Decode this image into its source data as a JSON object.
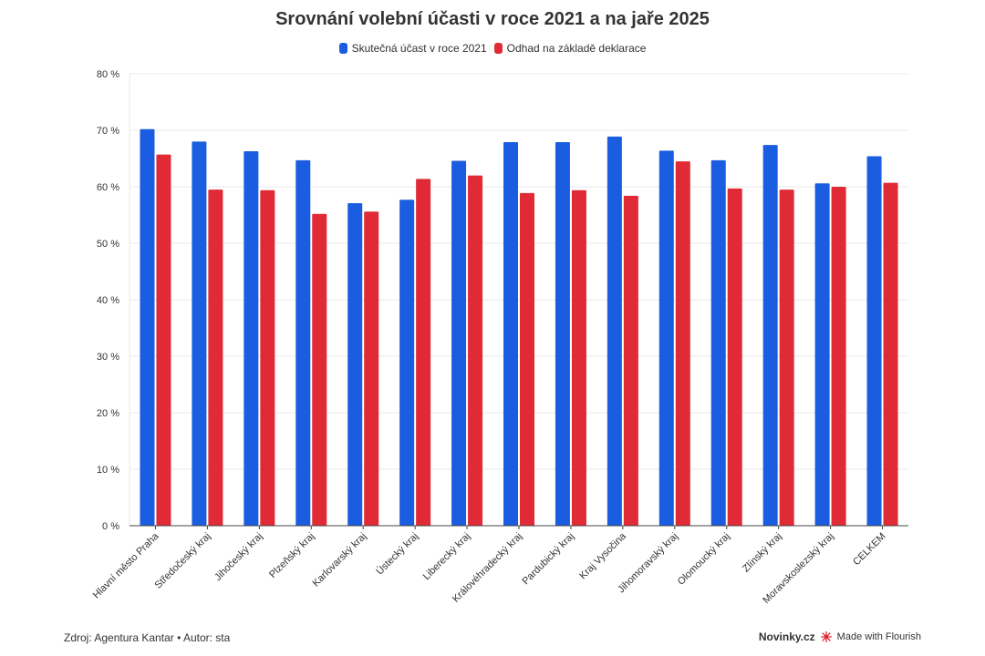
{
  "chart_data": {
    "type": "bar",
    "title": "Srovnání volební účasti v roce 2021 a na jaře 2025",
    "categories": [
      "Hlavní město Praha",
      "Středočeský kraj",
      "Jihočeský kraj",
      "Plzeňský kraj",
      "Karlovarský kraj",
      "Ústecký kraj",
      "Liberecký kraj",
      "Královéhradecký kraj",
      "Pardubický kraj",
      "Kraj Vysočina",
      "Jihomoravský kraj",
      "Olomoucký kraj",
      "Zlínský kraj",
      "Moravskoslezský kraj",
      "CELKEM"
    ],
    "series": [
      {
        "name": "Skutečná účast v roce 2021",
        "color": "#1a5de0",
        "values": [
          70.2,
          68.0,
          66.3,
          64.7,
          57.1,
          57.7,
          64.6,
          67.9,
          67.9,
          68.9,
          66.4,
          64.7,
          67.4,
          60.6,
          65.4
        ]
      },
      {
        "name": "Odhad na základě deklarace",
        "color": "#e02a35",
        "values": [
          65.7,
          59.5,
          59.4,
          55.2,
          55.6,
          61.4,
          62.0,
          58.9,
          59.4,
          58.4,
          64.5,
          59.7,
          59.5,
          60.0,
          60.7
        ]
      }
    ],
    "ylim": [
      0,
      80
    ],
    "yticks": [
      0,
      10,
      20,
      30,
      40,
      50,
      60,
      70,
      80
    ],
    "ytick_labels": [
      "0 %",
      "10 %",
      "20 %",
      "30 %",
      "40 %",
      "50 %",
      "60 %",
      "70 %",
      "80 %"
    ],
    "grid": true,
    "legend_position": "top-center"
  },
  "footer": {
    "source": "Zdroj: Agentura Kantar • Autor: sta",
    "brand": "Novinky.cz",
    "made_with": "Made with Flourish"
  }
}
